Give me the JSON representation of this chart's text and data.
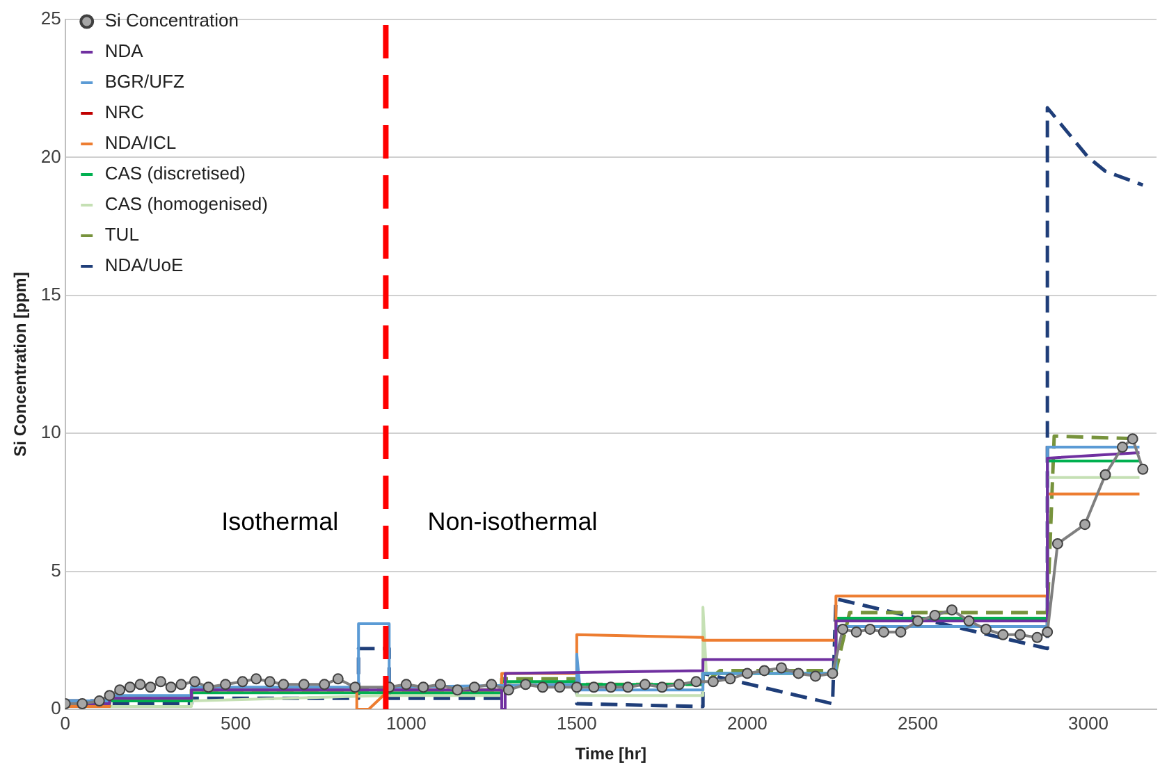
{
  "chart_data": {
    "type": "line",
    "xlabel": "Time [hr]",
    "ylabel": "Si Concentration [ppm]",
    "xlim": [
      0,
      3200
    ],
    "xticks": [
      0,
      500,
      1000,
      1500,
      2000,
      2500,
      3000
    ],
    "ylim": [
      0,
      25
    ],
    "yticks": [
      0,
      5,
      10,
      15,
      20,
      25
    ],
    "grid": "y",
    "legend": "top left",
    "annotations": [
      "Isothermal",
      "Non-isothermal"
    ],
    "ref_lines": [
      {
        "axis": "x",
        "value": 940,
        "color": "#ff0000",
        "line_style": "dashed"
      }
    ],
    "series": [
      {
        "name": "Si Concentration",
        "color": "#7f7f7f",
        "marker": "circle",
        "x": [
          0,
          50,
          100,
          130,
          160,
          190,
          220,
          250,
          280,
          310,
          340,
          380,
          420,
          470,
          520,
          560,
          600,
          640,
          700,
          760,
          800,
          850,
          950,
          1000,
          1050,
          1100,
          1150,
          1200,
          1250,
          1300,
          1350,
          1400,
          1450,
          1500,
          1550,
          1600,
          1650,
          1700,
          1750,
          1800,
          1850,
          1900,
          1950,
          2000,
          2050,
          2100,
          2150,
          2200,
          2250,
          2280,
          2320,
          2360,
          2400,
          2450,
          2500,
          2550,
          2600,
          2650,
          2700,
          2750,
          2800,
          2850,
          2880,
          2910,
          2990,
          3050,
          3100,
          3130,
          3160
        ],
        "values": [
          0.2,
          0.2,
          0.3,
          0.5,
          0.7,
          0.8,
          0.9,
          0.8,
          1.0,
          0.8,
          0.9,
          1.0,
          0.8,
          0.9,
          1.0,
          1.1,
          1.0,
          0.9,
          0.9,
          0.9,
          1.1,
          0.8,
          0.8,
          0.9,
          0.8,
          0.9,
          0.7,
          0.8,
          0.9,
          0.7,
          0.9,
          0.8,
          0.8,
          0.8,
          0.8,
          0.8,
          0.8,
          0.9,
          0.8,
          0.9,
          1.0,
          1.0,
          1.1,
          1.3,
          1.4,
          1.5,
          1.3,
          1.2,
          1.3,
          2.9,
          2.8,
          2.9,
          2.8,
          2.8,
          3.2,
          3.4,
          3.6,
          3.2,
          2.9,
          2.7,
          2.7,
          2.6,
          2.8,
          6.0,
          6.7,
          8.5,
          9.5,
          9.8,
          8.7
        ]
      },
      {
        "name": "NDA",
        "color": "#7030a0",
        "x": [
          0,
          130,
          130,
          370,
          370,
          1280,
          1280,
          1290,
          1290,
          1870,
          1870,
          2260,
          2260,
          2880,
          2880,
          3150
        ],
        "values": [
          0.2,
          0.2,
          0.4,
          0.4,
          0.7,
          0.7,
          0,
          0,
          1.3,
          1.4,
          1.8,
          1.8,
          3.2,
          3.2,
          9.1,
          9.3
        ]
      },
      {
        "name": "BGR/UFZ",
        "color": "#5b9bd5",
        "x": [
          0,
          130,
          130,
          370,
          370,
          860,
          860,
          950,
          950,
          1500,
          1500,
          1510,
          1510,
          1870,
          1870,
          2260,
          2260,
          2880,
          2880,
          3150
        ],
        "values": [
          0.3,
          0.3,
          0.5,
          0.5,
          0.8,
          0.8,
          3.1,
          3.1,
          0.8,
          0.9,
          2.0,
          0.7,
          0.7,
          0.7,
          1.3,
          1.3,
          3.0,
          3.0,
          9.5,
          9.5
        ]
      },
      {
        "name": "NRC",
        "color": "#c00000"
      },
      {
        "name": "NDA/ICL",
        "color": "#ed7d31",
        "x": [
          0,
          130,
          130,
          370,
          370,
          855,
          855,
          890,
          950,
          1280,
          1280,
          1500,
          1500,
          1870,
          1870,
          2260,
          2260,
          2880,
          2880,
          3150
        ],
        "values": [
          0.1,
          0.1,
          0.4,
          0.4,
          0.7,
          0.7,
          0,
          0,
          0.7,
          0.7,
          1.3,
          1.3,
          2.7,
          2.6,
          2.5,
          2.5,
          4.1,
          4.1,
          7.8,
          7.8
        ]
      },
      {
        "name": "CAS (discretised)",
        "color": "#00b050",
        "x": [
          0,
          130,
          130,
          370,
          370,
          950,
          1280,
          1280,
          1500,
          1500,
          1870,
          1870,
          2260,
          2260,
          2880,
          2880,
          3150
        ],
        "values": [
          0.1,
          0.1,
          0.3,
          0.3,
          0.6,
          0.6,
          0.6,
          1.0,
          1.0,
          0.9,
          0.9,
          1.3,
          1.3,
          3.3,
          3.3,
          9.0,
          9.0
        ]
      },
      {
        "name": "CAS (homogenised)",
        "color": "#c5e0b4",
        "x": [
          0,
          370,
          370,
          950,
          1280,
          1280,
          1500,
          1500,
          1870,
          1870,
          1880,
          2260,
          2260,
          2880,
          2880,
          3150
        ],
        "values": [
          0.1,
          0.1,
          0.3,
          0.5,
          0.5,
          0.9,
          0.9,
          0.5,
          0.5,
          3.7,
          1.3,
          1.3,
          3.0,
          3.0,
          8.4,
          8.4
        ]
      },
      {
        "name": "TUL",
        "color": "#77933c",
        "line_style": "dashed",
        "x": [
          0,
          130,
          130,
          370,
          370,
          950,
          1280,
          1280,
          1500,
          1500,
          1870,
          1920,
          2260,
          2300,
          2880,
          2900,
          3150
        ],
        "values": [
          0.2,
          0.2,
          0.4,
          0.4,
          0.7,
          0.7,
          0.7,
          1.1,
          1.1,
          0.9,
          0.9,
          1.4,
          1.4,
          3.5,
          3.5,
          9.9,
          9.8
        ]
      },
      {
        "name": "NDA/UoE",
        "color": "#1f3e79",
        "line_style": "dashed",
        "x": [
          0,
          130,
          130,
          370,
          370,
          860,
          860,
          950,
          950,
          1280,
          1280,
          1500,
          1500,
          1870,
          1870,
          2250,
          2260,
          2880,
          2880,
          3000,
          3050,
          3160
        ],
        "values": [
          0.3,
          0.3,
          0.2,
          0.2,
          0.4,
          0.4,
          2.2,
          2.2,
          0.4,
          0.4,
          0.9,
          0.9,
          0.2,
          0.1,
          1.3,
          0.2,
          4.0,
          2.2,
          21.8,
          20.0,
          19.5,
          19.0
        ]
      }
    ]
  }
}
